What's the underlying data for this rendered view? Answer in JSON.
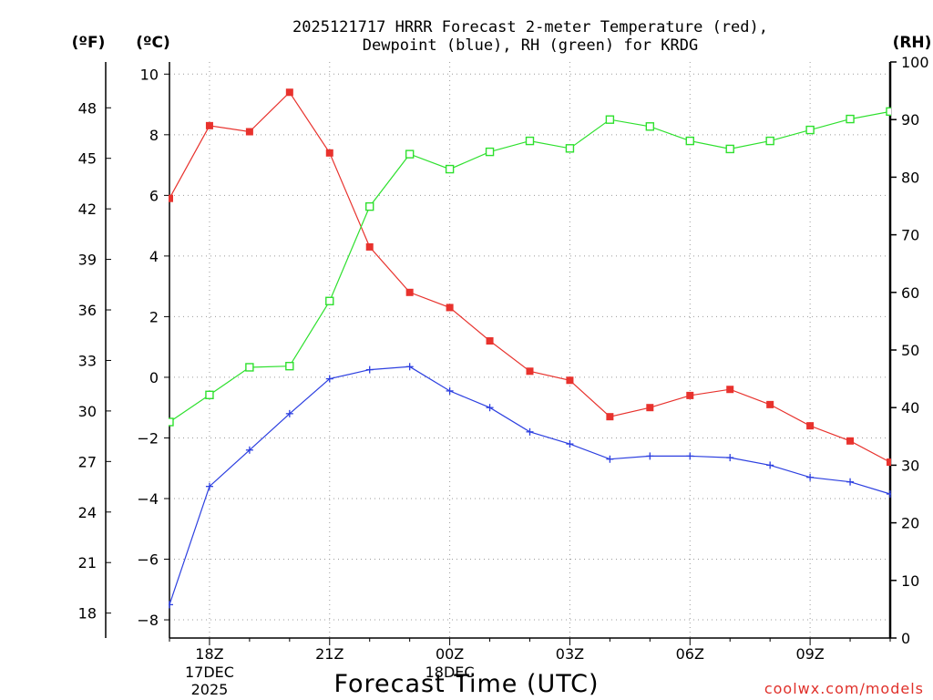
{
  "title_line1": "2025121717 HRRR Forecast 2-meter Temperature (red),",
  "title_line2": "Dewpoint (blue), RH (green) for KRDG",
  "unit_f": "(ºF)",
  "unit_c": "(ºC)",
  "unit_rh": "(RH)",
  "xlabel": "Forecast Time (UTC)",
  "credit": "coolwx.com/models",
  "colors": {
    "temperature": "#e8322d",
    "dewpoint": "#2c3fe0",
    "rh": "#2ee02e",
    "axis": "#000000",
    "grid": "#9a9a9a"
  },
  "chart_data": {
    "type": "line",
    "x_hours": [
      17,
      18,
      19,
      20,
      21,
      22,
      23,
      24,
      25,
      26,
      27,
      28,
      29,
      30,
      31,
      32,
      33,
      34,
      35
    ],
    "xlim": [
      17,
      35
    ],
    "x_ticks": [
      {
        "hour": 18,
        "label": "18Z",
        "date1": "17DEC",
        "date2": "2025"
      },
      {
        "hour": 21,
        "label": "21Z"
      },
      {
        "hour": 24,
        "label": "00Z",
        "date1": "18DEC"
      },
      {
        "hour": 27,
        "label": "03Z"
      },
      {
        "hour": 30,
        "label": "06Z"
      },
      {
        "hour": 33,
        "label": "09Z"
      }
    ],
    "y_c_ticks": [
      10,
      8,
      6,
      4,
      2,
      0,
      -2,
      -4,
      -6,
      -8
    ],
    "y_c_tick_labels": [
      "10",
      "8",
      "6",
      "4",
      "2",
      "0",
      "−2",
      "−4",
      "−6",
      "−8"
    ],
    "ylim_c": [
      -8.6,
      10.4
    ],
    "y_f_ticks": [
      48,
      45,
      42,
      39,
      36,
      33,
      30,
      27,
      24,
      21,
      18
    ],
    "y_f_tick_labels": [
      "48",
      "45",
      "42",
      "39",
      "36",
      "33",
      "30",
      "27",
      "24",
      "21",
      "18"
    ],
    "y_rh_ticks": [
      100,
      90,
      80,
      70,
      60,
      50,
      40,
      30,
      20,
      10,
      0
    ],
    "y_rh_tick_labels": [
      "100",
      "90",
      "80",
      "70",
      "60",
      "50",
      "40",
      "30",
      "20",
      "10",
      "0"
    ],
    "ylim_rh": [
      0,
      100
    ],
    "series": [
      {
        "name": "Temperature",
        "unit": "C",
        "marker": "filled-square",
        "color": "#e8322d",
        "values": [
          5.9,
          8.3,
          8.1,
          9.4,
          7.4,
          4.3,
          2.8,
          2.3,
          1.2,
          0.2,
          -0.1,
          -1.3,
          -1.0,
          -0.6,
          -0.4,
          -0.9,
          -1.6,
          -2.1,
          -2.8
        ]
      },
      {
        "name": "Dewpoint",
        "unit": "C",
        "marker": "plus",
        "color": "#2c3fe0",
        "values": [
          -7.5,
          -3.6,
          -2.4,
          -1.2,
          -0.05,
          0.25,
          0.35,
          -0.45,
          -1.0,
          -1.8,
          -2.2,
          -2.7,
          -2.6,
          -2.6,
          -2.65,
          -2.9,
          -3.3,
          -3.45,
          -3.85
        ]
      },
      {
        "name": "RH",
        "unit": "%",
        "marker": "open-square",
        "color": "#2ee02e",
        "values": [
          37.5,
          42.2,
          47,
          47.2,
          58.5,
          74.9,
          84,
          81.4,
          84.4,
          86.3,
          85,
          90,
          88.8,
          86.3,
          84.9,
          86.3,
          88.2,
          90.1,
          91.4
        ]
      }
    ]
  }
}
